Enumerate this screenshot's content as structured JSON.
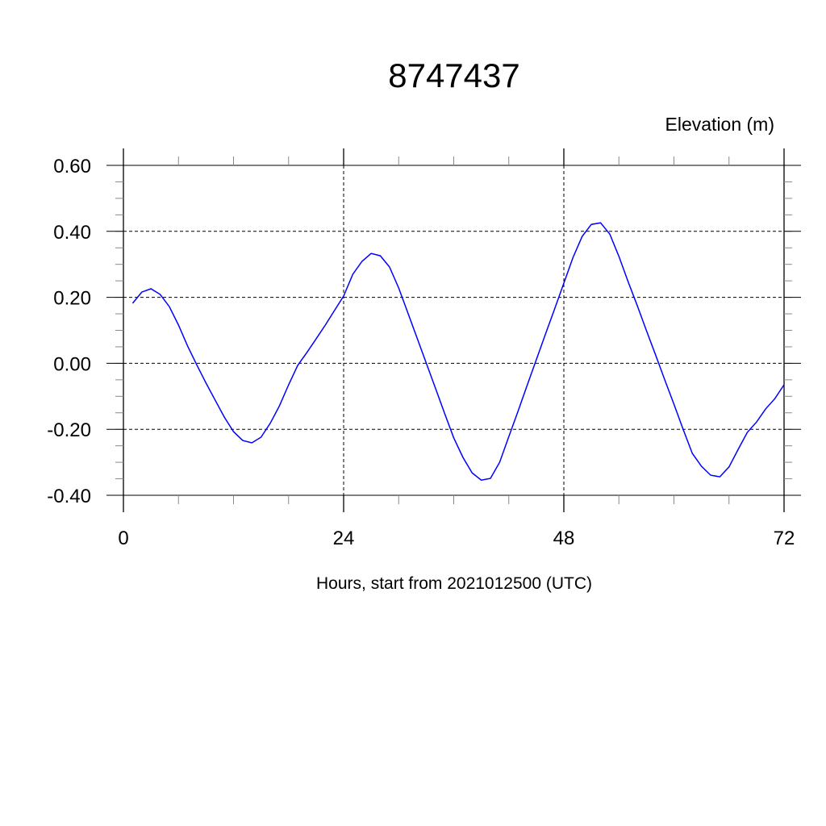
{
  "chart_data": {
    "type": "line",
    "title": "8747437",
    "ylabel": "Elevation (m)",
    "xlabel": "Hours, start from 2021012500 (UTC)",
    "xlim": [
      0,
      72
    ],
    "ylim": [
      -0.4,
      0.6
    ],
    "x_ticks": [
      0,
      24,
      48,
      72
    ],
    "x_tick_labels": [
      "0",
      "24",
      "48",
      "72"
    ],
    "x_minor_step": 6,
    "y_ticks": [
      0.6,
      0.4,
      0.2,
      0.0,
      -0.2,
      -0.4
    ],
    "y_tick_labels": [
      "0.60",
      "0.40",
      "0.20",
      "0.00",
      "-0.20",
      "-0.40"
    ],
    "y_minor_step": 0.05,
    "grid": true,
    "line_color": "#0000ff",
    "series": [
      {
        "x": [
          1,
          2,
          3,
          4,
          5,
          6,
          7,
          8,
          9,
          10,
          11,
          12,
          13,
          14,
          15,
          16,
          17,
          18,
          19,
          20,
          21,
          22,
          23,
          24,
          25,
          26,
          27,
          28,
          29,
          30,
          31,
          32,
          33,
          34,
          35,
          36,
          37,
          38,
          39,
          40,
          41,
          42,
          43,
          44,
          45,
          46,
          47,
          48,
          49,
          50,
          51,
          52,
          53,
          54,
          55,
          56,
          57,
          58,
          59,
          60,
          61,
          62,
          63,
          64,
          65,
          66,
          67,
          68,
          69,
          70,
          71,
          72
        ],
        "y": [
          0.182,
          0.216,
          0.226,
          0.209,
          0.172,
          0.116,
          0.052,
          -0.005,
          -0.06,
          -0.112,
          -0.163,
          -0.207,
          -0.234,
          -0.241,
          -0.224,
          -0.182,
          -0.129,
          -0.065,
          -0.006,
          0.033,
          0.074,
          0.116,
          0.16,
          0.204,
          0.27,
          0.309,
          0.333,
          0.326,
          0.292,
          0.228,
          0.153,
          0.077,
          0.001,
          -0.075,
          -0.151,
          -0.226,
          -0.285,
          -0.332,
          -0.354,
          -0.349,
          -0.3,
          -0.222,
          -0.146,
          -0.067,
          0.011,
          0.089,
          0.165,
          0.243,
          0.321,
          0.385,
          0.421,
          0.426,
          0.392,
          0.324,
          0.248,
          0.175,
          0.099,
          0.025,
          -0.05,
          -0.124,
          -0.2,
          -0.273,
          -0.312,
          -0.339,
          -0.344,
          -0.314,
          -0.261,
          -0.209,
          -0.178,
          -0.138,
          -0.107,
          -0.065
        ]
      }
    ]
  }
}
